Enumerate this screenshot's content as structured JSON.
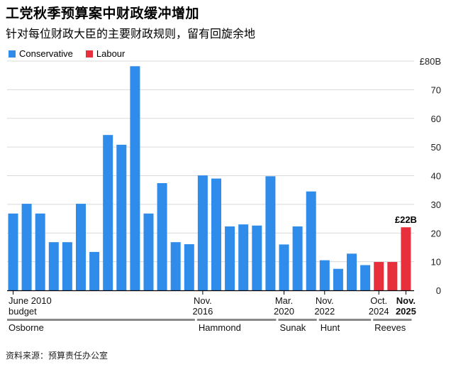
{
  "header": {
    "title": "工党秋季预算案中财政缓冲增加",
    "subtitle": "针对每位财政大臣的主要财政规则，留有回旋余地"
  },
  "legend": {
    "conservative": "Conservative",
    "labour": "Labour"
  },
  "colors": {
    "conservative": "#2f8ceb",
    "labour": "#e8303d",
    "grid": "#d9d9d9",
    "axis": "#000000",
    "chancellor_bar": "#8a8a8a"
  },
  "footer": {
    "source": "资料来源：预算责任办公室"
  },
  "chart_data": {
    "type": "bar",
    "title": "工党秋季预算案中财政缓冲增加",
    "ylim": [
      0,
      80
    ],
    "yticks": [
      {
        "value": 0,
        "label": "0"
      },
      {
        "value": 10,
        "label": "10"
      },
      {
        "value": 20,
        "label": "20"
      },
      {
        "value": 30,
        "label": "30"
      },
      {
        "value": 40,
        "label": "40"
      },
      {
        "value": 50,
        "label": "50"
      },
      {
        "value": 60,
        "label": "60"
      },
      {
        "value": 70,
        "label": "70"
      },
      {
        "value": 80,
        "label": "£80B"
      }
    ],
    "series": [
      {
        "name": "Conservative",
        "color_key": "conservative",
        "values": [
          26.8,
          30.2,
          26.8,
          16.8,
          16.8,
          30.2,
          13.4,
          54.2,
          50.8,
          78.2,
          26.8,
          37.4,
          16.8,
          16.1,
          40.1,
          39.0,
          22.3,
          23.0,
          22.6,
          39.8,
          16.0,
          22.3,
          34.5,
          10.5,
          7.5,
          12.8,
          8.8,
          null,
          null,
          null
        ]
      },
      {
        "name": "Labour",
        "color_key": "labour",
        "values": [
          null,
          null,
          null,
          null,
          null,
          null,
          null,
          null,
          null,
          null,
          null,
          null,
          null,
          null,
          null,
          null,
          null,
          null,
          null,
          null,
          null,
          null,
          null,
          null,
          null,
          null,
          null,
          9.9,
          9.9,
          22.0
        ]
      }
    ],
    "x_labels": [
      {
        "index": 0,
        "line1": "June 2010",
        "line2": "budget",
        "align": "start",
        "bold": false
      },
      {
        "index": 14,
        "line1": "Nov.",
        "line2": "2016",
        "align": "middle",
        "bold": false
      },
      {
        "index": 20,
        "line1": "Mar.",
        "line2": "2020",
        "align": "middle",
        "bold": false
      },
      {
        "index": 23,
        "line1": "Nov.",
        "line2": "2022",
        "align": "middle",
        "bold": false
      },
      {
        "index": 27,
        "line1": "Oct.",
        "line2": "2024",
        "align": "middle",
        "bold": false
      },
      {
        "index": 29,
        "line1": "Nov.",
        "line2": "2025",
        "align": "middle",
        "bold": true
      }
    ],
    "chancellors": [
      {
        "name": "Osborne",
        "start": 0,
        "end": 13
      },
      {
        "name": "Hammond",
        "start": 14,
        "end": 19
      },
      {
        "name": "Sunak",
        "start": 20,
        "end": 22
      },
      {
        "name": "Hunt",
        "start": 23,
        "end": 26
      },
      {
        "name": "Reeves",
        "start": 27,
        "end": 29
      }
    ],
    "annotations": [
      {
        "index": 29,
        "text": "£22B"
      }
    ]
  }
}
